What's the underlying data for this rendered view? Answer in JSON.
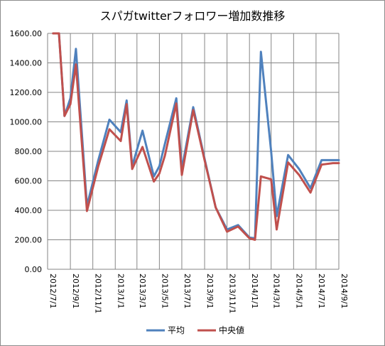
{
  "chart_data": {
    "type": "line",
    "title": "スパガtwitterフォロワー増加数推移",
    "x": [
      "2012/7/16",
      "2012/8/1",
      "2012/8/16",
      "2012/9/1",
      "2012/9/16",
      "2012/10/16",
      "2012/11/16",
      "2012/12/16",
      "2013/1/16",
      "2013/2/1",
      "2013/2/16",
      "2013/3/16",
      "2013/4/16",
      "2013/5/1",
      "2013/5/16",
      "2013/6/16",
      "2013/7/1",
      "2013/8/1",
      "2013/9/1",
      "2013/10/1",
      "2013/11/1",
      "2013/12/1",
      "2014/1/1",
      "2014/1/16",
      "2014/2/1",
      "2014/3/1",
      "2014/3/16",
      "2014/4/16",
      "2014/5/16",
      "2014/6/16",
      "2014/7/16",
      "2014/8/16",
      "2014/9/1"
    ],
    "series": [
      {
        "name": "平均",
        "color": "#4f81bd",
        "values": [
          1600,
          1600,
          1040,
          1160,
          1495,
          430,
          740,
          1015,
          930,
          1145,
          700,
          940,
          630,
          700,
          850,
          1160,
          680,
          1100,
          750,
          420,
          270,
          300,
          215,
          210,
          1475,
          800,
          360,
          775,
          680,
          550,
          740,
          740,
          740
        ]
      },
      {
        "name": "中央値",
        "color": "#c0504d",
        "values": [
          1600,
          1600,
          1040,
          1120,
          1390,
          395,
          700,
          950,
          870,
          1120,
          680,
          830,
          595,
          650,
          770,
          1125,
          640,
          1080,
          740,
          420,
          255,
          290,
          210,
          200,
          630,
          610,
          270,
          725,
          640,
          520,
          710,
          720,
          720
        ]
      }
    ],
    "ylim": [
      0,
      1600
    ],
    "yticks": [
      "0.00",
      "200.00",
      "400.00",
      "600.00",
      "800.00",
      "1000.00",
      "1200.00",
      "1400.00",
      "1600.00"
    ],
    "xticks": [
      "2012/7/1",
      "2012/9/1",
      "2012/11/1",
      "2013/1/1",
      "2013/3/1",
      "2013/5/1",
      "2013/7/1",
      "2013/9/1",
      "2013/11/1",
      "2014/1/1",
      "2014/3/1",
      "2014/5/1",
      "2014/7/1",
      "2014/9/1"
    ],
    "grid": true,
    "legend_position": "bottom"
  }
}
